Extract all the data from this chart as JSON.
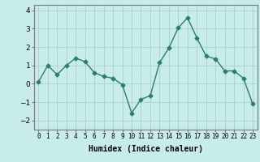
{
  "x": [
    0,
    1,
    2,
    3,
    4,
    5,
    6,
    7,
    8,
    9,
    10,
    11,
    12,
    13,
    14,
    15,
    16,
    17,
    18,
    19,
    20,
    21,
    22,
    23
  ],
  "y": [
    0.1,
    1.0,
    0.5,
    1.0,
    1.4,
    1.2,
    0.6,
    0.4,
    0.3,
    -0.05,
    -1.6,
    -0.85,
    -0.65,
    1.15,
    1.95,
    3.05,
    3.6,
    2.5,
    1.5,
    1.35,
    0.7,
    0.7,
    0.3,
    -1.1
  ],
  "line_color": "#2e7d6e",
  "marker": "D",
  "markersize": 2.5,
  "linewidth": 1.0,
  "bg_color": "#c8ecea",
  "grid_color": "#aed4d1",
  "xlabel": "Humidex (Indice chaleur)",
  "xlabel_fontsize": 7,
  "ylim": [
    -2.5,
    4.3
  ],
  "yticks": [
    -2,
    -1,
    0,
    1,
    2,
    3,
    4
  ],
  "xticks": [
    0,
    1,
    2,
    3,
    4,
    5,
    6,
    7,
    8,
    9,
    10,
    11,
    12,
    13,
    14,
    15,
    16,
    17,
    18,
    19,
    20,
    21,
    22,
    23
  ],
  "ytick_fontsize": 6.5,
  "xtick_fontsize": 5.5
}
